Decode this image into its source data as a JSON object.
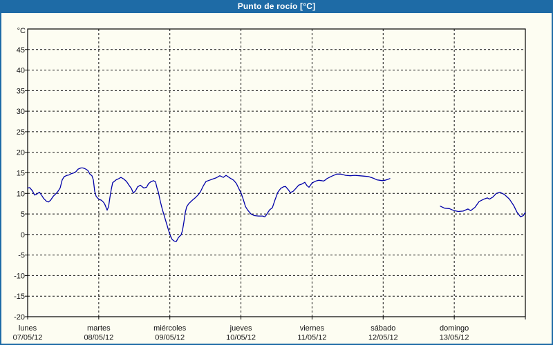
{
  "window": {
    "title": "Punto de rocío [°C]"
  },
  "colors": {
    "frame_blue": "#1e6ba6",
    "background": "#fdfdf2",
    "line_color": "#0000a8",
    "grid_color": "#111111",
    "text_color": "#111111",
    "title_text": "#ffffff"
  },
  "chart_data": {
    "type": "line",
    "title": "Punto de rocío [°C]",
    "y_unit_label": "°C",
    "ylim": [
      -20,
      50
    ],
    "xlim_days": [
      0,
      7
    ],
    "y_ticks": [
      45,
      40,
      35,
      30,
      25,
      20,
      15,
      10,
      5,
      0,
      -5,
      -10,
      -15,
      -20
    ],
    "grid": "black dashed, horizontal every 5°C, vertical at each day boundary",
    "legend_position": "none",
    "x_days": [
      {
        "name": "lunes",
        "date": "07/05/12"
      },
      {
        "name": "martes",
        "date": "08/05/12"
      },
      {
        "name": "miércoles",
        "date": "09/05/12"
      },
      {
        "name": "jueves",
        "date": "10/05/12"
      },
      {
        "name": "viernes",
        "date": "11/05/12"
      },
      {
        "name": "sábado",
        "date": "12/05/12"
      },
      {
        "name": "domingo",
        "date": "13/05/12"
      }
    ],
    "series": [
      {
        "name": "dew-point-segment-1",
        "points": [
          [
            0.0,
            11.3
          ],
          [
            0.029,
            11.4
          ],
          [
            0.068,
            10.6
          ],
          [
            0.097,
            9.6
          ],
          [
            0.126,
            9.8
          ],
          [
            0.165,
            10.3
          ],
          [
            0.194,
            9.6
          ],
          [
            0.224,
            8.8
          ],
          [
            0.263,
            8.1
          ],
          [
            0.292,
            7.9
          ],
          [
            0.321,
            8.3
          ],
          [
            0.36,
            9.3
          ],
          [
            0.389,
            9.8
          ],
          [
            0.418,
            10.3
          ],
          [
            0.457,
            11.3
          ],
          [
            0.486,
            13.3
          ],
          [
            0.515,
            14.1
          ],
          [
            0.554,
            14.4
          ],
          [
            0.583,
            14.5
          ],
          [
            0.612,
            14.8
          ],
          [
            0.651,
            15.0
          ],
          [
            0.681,
            15.3
          ],
          [
            0.71,
            15.9
          ],
          [
            0.749,
            16.2
          ],
          [
            0.778,
            16.2
          ],
          [
            0.807,
            16.0
          ],
          [
            0.846,
            15.6
          ],
          [
            0.875,
            14.7
          ],
          [
            0.904,
            14.3
          ],
          [
            0.924,
            13.3
          ],
          [
            0.943,
            10.5
          ],
          [
            0.963,
            9.3
          ],
          [
            0.982,
            8.9
          ],
          [
            1.001,
            8.6
          ],
          [
            1.04,
            8.3
          ],
          [
            1.069,
            7.8
          ],
          [
            1.089,
            7.2
          ],
          [
            1.118,
            5.9
          ],
          [
            1.138,
            6.8
          ],
          [
            1.157,
            9.0
          ],
          [
            1.176,
            11.0
          ],
          [
            1.196,
            12.6
          ],
          [
            1.244,
            13.3
          ],
          [
            1.283,
            13.6
          ],
          [
            1.312,
            13.9
          ],
          [
            1.351,
            13.5
          ],
          [
            1.39,
            12.9
          ],
          [
            1.429,
            11.9
          ],
          [
            1.458,
            11.2
          ],
          [
            1.487,
            10.1
          ],
          [
            1.517,
            10.6
          ],
          [
            1.546,
            11.6
          ],
          [
            1.585,
            12.0
          ],
          [
            1.633,
            11.3
          ],
          [
            1.672,
            11.5
          ],
          [
            1.701,
            12.4
          ],
          [
            1.731,
            12.8
          ],
          [
            1.769,
            13.1
          ],
          [
            1.799,
            12.8
          ],
          [
            1.818,
            11.4
          ],
          [
            1.838,
            10.3
          ],
          [
            1.867,
            8.0
          ],
          [
            1.896,
            6.0
          ],
          [
            1.915,
            4.9
          ],
          [
            1.944,
            3.2
          ],
          [
            1.974,
            1.5
          ],
          [
            2.003,
            -0.1
          ],
          [
            2.032,
            -1.2
          ],
          [
            2.061,
            -1.6
          ],
          [
            2.09,
            -1.7
          ],
          [
            2.119,
            -0.8
          ],
          [
            2.139,
            -0.4
          ],
          [
            2.158,
            -0.1
          ],
          [
            2.178,
            1.0
          ],
          [
            2.197,
            3.0
          ],
          [
            2.217,
            5.3
          ],
          [
            2.236,
            6.7
          ],
          [
            2.265,
            7.5
          ],
          [
            2.314,
            8.3
          ],
          [
            2.362,
            9.0
          ],
          [
            2.401,
            9.7
          ],
          [
            2.431,
            10.4
          ],
          [
            2.469,
            11.8
          ],
          [
            2.508,
            12.9
          ],
          [
            2.557,
            13.2
          ],
          [
            2.606,
            13.5
          ],
          [
            2.654,
            13.8
          ],
          [
            2.703,
            14.3
          ],
          [
            2.751,
            13.9
          ],
          [
            2.79,
            14.4
          ],
          [
            2.849,
            13.7
          ],
          [
            2.897,
            13.2
          ],
          [
            2.936,
            12.4
          ],
          [
            2.975,
            11.0
          ],
          [
            3.004,
            10.0
          ],
          [
            3.033,
            8.5
          ],
          [
            3.063,
            6.8
          ],
          [
            3.092,
            6.0
          ],
          [
            3.14,
            5.0
          ],
          [
            3.189,
            4.6
          ],
          [
            3.247,
            4.5
          ],
          [
            3.306,
            4.5
          ],
          [
            3.335,
            4.3
          ],
          [
            3.354,
            4.7
          ],
          [
            3.403,
            6.0
          ],
          [
            3.442,
            6.5
          ],
          [
            3.481,
            8.5
          ],
          [
            3.519,
            10.3
          ],
          [
            3.558,
            11.2
          ],
          [
            3.597,
            11.6
          ],
          [
            3.626,
            11.7
          ],
          [
            3.665,
            10.9
          ],
          [
            3.694,
            10.2
          ],
          [
            3.733,
            10.5
          ],
          [
            3.772,
            11.2
          ],
          [
            3.811,
            12.0
          ],
          [
            3.86,
            12.3
          ],
          [
            3.899,
            12.7
          ],
          [
            3.928,
            11.9
          ],
          [
            3.957,
            11.5
          ],
          [
            3.986,
            12.2
          ],
          [
            4.006,
            12.6
          ],
          [
            4.054,
            13.0
          ],
          [
            4.093,
            13.2
          ],
          [
            4.132,
            13.1
          ],
          [
            4.161,
            13.0
          ],
          [
            4.19,
            13.3
          ],
          [
            4.21,
            13.6
          ],
          [
            4.278,
            14.2
          ],
          [
            4.346,
            14.7
          ],
          [
            4.404,
            14.7
          ],
          [
            4.472,
            14.4
          ],
          [
            4.54,
            14.3
          ],
          [
            4.599,
            14.4
          ],
          [
            4.667,
            14.3
          ],
          [
            4.735,
            14.2
          ],
          [
            4.793,
            14.1
          ],
          [
            4.861,
            13.7
          ],
          [
            4.91,
            13.3
          ],
          [
            4.949,
            13.2
          ],
          [
            4.988,
            13.1
          ],
          [
            5.026,
            13.2
          ],
          [
            5.065,
            13.4
          ],
          [
            5.094,
            13.6
          ]
        ]
      },
      {
        "name": "dew-point-segment-2",
        "points": [
          [
            5.804,
            6.9
          ],
          [
            5.863,
            6.4
          ],
          [
            5.931,
            6.3
          ],
          [
            5.999,
            5.8
          ],
          [
            6.057,
            5.6
          ],
          [
            6.125,
            5.7
          ],
          [
            6.193,
            6.2
          ],
          [
            6.232,
            5.8
          ],
          [
            6.291,
            6.6
          ],
          [
            6.349,
            8.0
          ],
          [
            6.417,
            8.6
          ],
          [
            6.465,
            8.9
          ],
          [
            6.495,
            8.6
          ],
          [
            6.543,
            9.1
          ],
          [
            6.592,
            10.0
          ],
          [
            6.64,
            10.3
          ],
          [
            6.708,
            9.7
          ],
          [
            6.776,
            8.6
          ],
          [
            6.835,
            7.1
          ],
          [
            6.883,
            5.4
          ],
          [
            6.932,
            4.3
          ],
          [
            6.971,
            4.6
          ],
          [
            7.0,
            5.4
          ]
        ]
      }
    ]
  }
}
